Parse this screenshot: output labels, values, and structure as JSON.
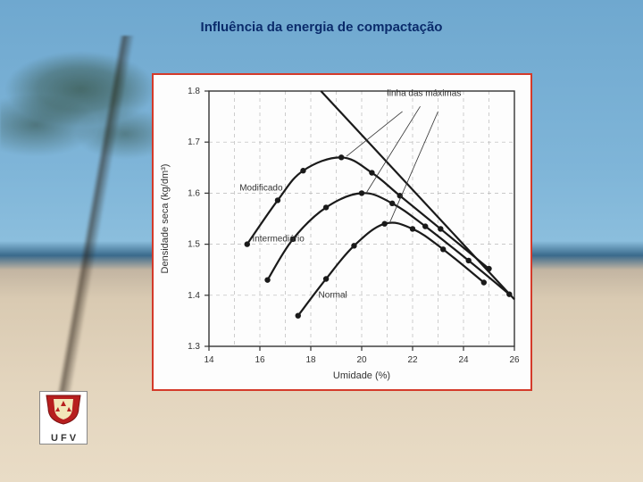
{
  "title": "Influência da energia de compactação",
  "title_fontsize": 15,
  "title_color": "#0a2b6b",
  "panel_border_color": "#d43a2a",
  "logo_text": "U F V",
  "chart": {
    "type": "line",
    "background_color": "#fdfdfd",
    "axis_color": "#333333",
    "grid_color": "#b8b8b8",
    "tick_fontsize": 10,
    "x": {
      "label": "Umidade (%)",
      "label_fontsize": 11,
      "min": 14,
      "max": 26,
      "ticks": [
        14,
        16,
        18,
        20,
        22,
        24,
        26
      ]
    },
    "y": {
      "label": "Densidade seca (kg/dm³)",
      "label_fontsize": 11,
      "min": 1.3,
      "max": 1.8,
      "ticks": [
        1.3,
        1.4,
        1.5,
        1.6,
        1.7,
        1.8
      ]
    },
    "line_width": 2.2,
    "marker_radius": 3.2,
    "series_color": "#1a1a1a",
    "series": [
      {
        "name": "Modificado",
        "points": [
          [
            15.5,
            1.5
          ],
          [
            16.7,
            1.586
          ],
          [
            17.7,
            1.644
          ],
          [
            19.2,
            1.67
          ],
          [
            20.4,
            1.64
          ],
          [
            21.5,
            1.595
          ],
          [
            23.1,
            1.53
          ],
          [
            25.0,
            1.452
          ]
        ],
        "label_xy": [
          15.2,
          1.605
        ]
      },
      {
        "name": "Intermediário",
        "points": [
          [
            16.3,
            1.43
          ],
          [
            17.3,
            1.51
          ],
          [
            18.6,
            1.572
          ],
          [
            20.0,
            1.6
          ],
          [
            21.2,
            1.58
          ],
          [
            22.5,
            1.535
          ],
          [
            24.2,
            1.468
          ],
          [
            25.8,
            1.402
          ]
        ],
        "label_xy": [
          15.7,
          1.505
        ]
      },
      {
        "name": "Normal",
        "points": [
          [
            17.5,
            1.36
          ],
          [
            18.6,
            1.432
          ],
          [
            19.7,
            1.497
          ],
          [
            20.9,
            1.54
          ],
          [
            22.0,
            1.53
          ],
          [
            23.2,
            1.49
          ],
          [
            24.8,
            1.425
          ]
        ],
        "label_xy": [
          18.3,
          1.395
        ]
      }
    ],
    "max_line": {
      "label": "linha das máximas",
      "label_xy": [
        21.0,
        1.79
      ],
      "points": [
        [
          18.4,
          1.8
        ],
        [
          26.0,
          1.392
        ]
      ]
    },
    "leader_lines": [
      {
        "from": [
          21.6,
          1.76
        ],
        "to": [
          19.4,
          1.672
        ]
      },
      {
        "from": [
          22.3,
          1.77
        ],
        "to": [
          20.2,
          1.602
        ]
      },
      {
        "from": [
          23.0,
          1.76
        ],
        "to": [
          21.1,
          1.542
        ]
      }
    ]
  }
}
